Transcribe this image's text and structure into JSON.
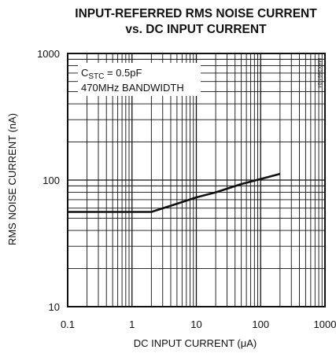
{
  "chart_data": {
    "type": "line",
    "title_lines": [
      "INPUT-REFERRED RMS NOISE CURRENT",
      "vs. DC INPUT CURRENT"
    ],
    "xlabel": "DC INPUT CURRENT (μA)",
    "ylabel": "RMS NOISE CURRENT (nA)",
    "x_scale": "log",
    "y_scale": "log",
    "xlim": [
      0.1,
      1000
    ],
    "ylim": [
      10,
      1000
    ],
    "x_ticks": [
      {
        "value": 0.1,
        "label": "0.1"
      },
      {
        "value": 1,
        "label": "1"
      },
      {
        "value": 10,
        "label": "10"
      },
      {
        "value": 100,
        "label": "100"
      },
      {
        "value": 1000,
        "label": "1000"
      }
    ],
    "y_ticks": [
      {
        "value": 10,
        "label": "10"
      },
      {
        "value": 100,
        "label": "100"
      },
      {
        "value": 1000,
        "label": "1000"
      }
    ],
    "grid": true,
    "series": [
      {
        "x": [
          0.1,
          2,
          5,
          10,
          20,
          50,
          100,
          200
        ],
        "y": [
          56,
          56,
          65,
          73,
          80,
          93,
          102,
          112
        ]
      }
    ],
    "annotation": {
      "cstc_main": "C",
      "cstc_sub": "STC",
      "cstc_rest": " = 0.5pF",
      "bandwidth": "470MHz BANDWIDTH"
    },
    "figure_code": "MAX3664-04"
  }
}
